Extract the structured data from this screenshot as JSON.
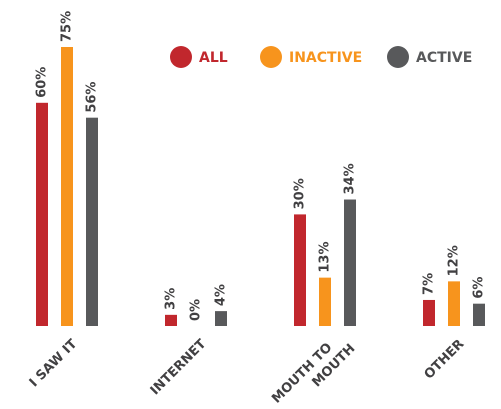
{
  "chart_data": {
    "type": "bar",
    "categories": [
      "I SAW IT",
      "INTERNET",
      "MOUTH TO MOUTH",
      "OTHER"
    ],
    "series": [
      {
        "name": "ALL",
        "color": "#c1272d",
        "values": [
          60,
          3,
          30,
          7
        ],
        "value_labels": [
          "60%",
          "3%",
          "30%",
          "7%"
        ]
      },
      {
        "name": "INACTIVE",
        "color": "#f7941d",
        "values": [
          75,
          0,
          13,
          12
        ],
        "value_labels": [
          "75%",
          "0%",
          "13%",
          "12%"
        ]
      },
      {
        "name": "ACTIVE",
        "color": "#58595b",
        "values": [
          56,
          4,
          34,
          6
        ],
        "value_labels": [
          "56%",
          "4%",
          "34%",
          "6%"
        ]
      }
    ],
    "legend": "top-right"
  }
}
